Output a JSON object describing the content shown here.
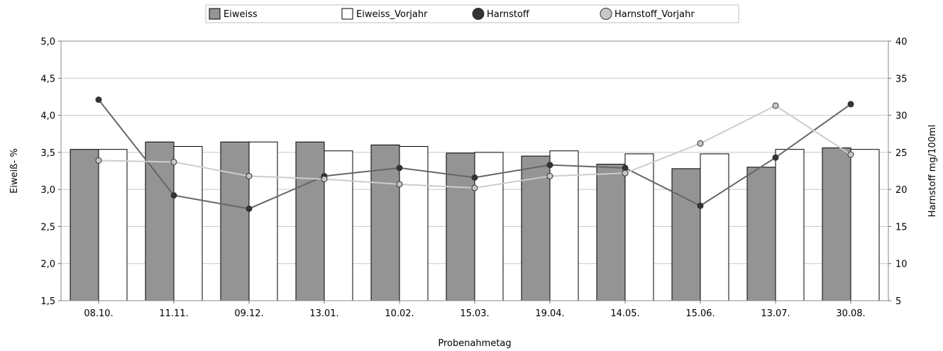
{
  "chart_data": {
    "type": "bar",
    "categories": [
      "08.10.",
      "11.11.",
      "09.12.",
      "13.01.",
      "10.02.",
      "15.03.",
      "19.04.",
      "14.05.",
      "15.06.",
      "13.07.",
      "30.08."
    ],
    "xlabel": "Probenahmetag",
    "ylabel": "Eiweiß- %",
    "y2label": "Harnstoff mg/100ml",
    "ylim": [
      1.5,
      5.0
    ],
    "yticks": [
      "1,5",
      "2,0",
      "2,5",
      "3,0",
      "3,5",
      "4,0",
      "4,5",
      "5,0"
    ],
    "y2lim": [
      5,
      40
    ],
    "y2ticks": [
      "5",
      "10",
      "15",
      "20",
      "25",
      "30",
      "35",
      "40"
    ],
    "grid": true,
    "legend_position": "top-center",
    "bar_series": [
      {
        "name": "Eiweiss",
        "color": "#949494",
        "values": [
          3.54,
          3.64,
          3.64,
          3.64,
          3.6,
          3.49,
          3.45,
          3.34,
          3.28,
          3.3,
          3.56
        ]
      },
      {
        "name": "Eiweiss_Vorjahr",
        "color": "#ffffff",
        "values": [
          3.54,
          3.58,
          3.64,
          3.52,
          3.58,
          3.5,
          3.52,
          3.48,
          3.48,
          3.54,
          3.54
        ]
      }
    ],
    "line_series": [
      {
        "name": "Harnstoff",
        "color": "#333333",
        "line_color": "#666666",
        "values": [
          32.1,
          19.2,
          17.4,
          21.8,
          22.9,
          21.6,
          23.3,
          22.9,
          17.8,
          24.3,
          31.5
        ]
      },
      {
        "name": "Harnstoff_Vorjahr",
        "color": "#c8c8c8",
        "line_color": "#cccccc",
        "values": [
          23.9,
          23.7,
          21.8,
          21.4,
          20.7,
          20.2,
          21.8,
          22.2,
          26.2,
          31.3,
          24.7
        ]
      }
    ]
  }
}
